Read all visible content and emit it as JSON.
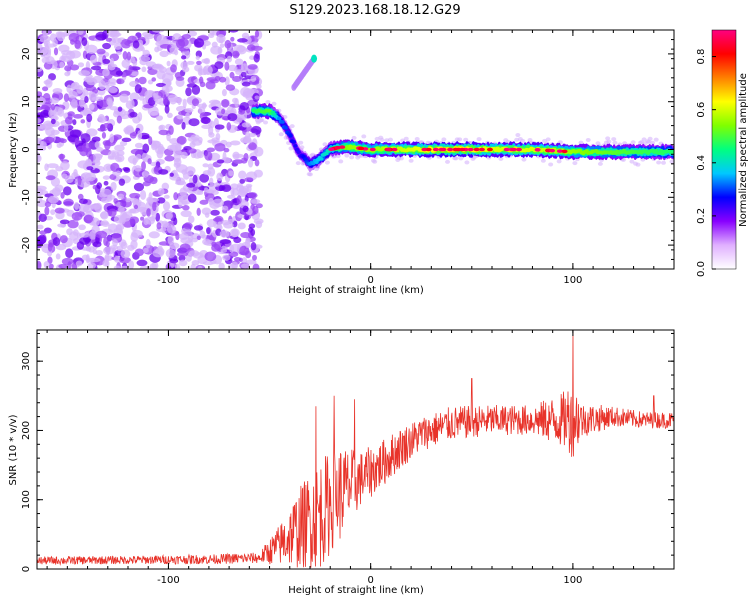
{
  "title": "S129.2023.168.18.12.G29",
  "chart_data": [
    {
      "type": "heatmap",
      "xlabel": "Height of straight line (km)",
      "ylabel": "Frequency (Hz)",
      "xlim": [
        -165,
        150
      ],
      "ylim": [
        -25,
        25
      ],
      "xticks": [
        -100,
        0,
        100
      ],
      "yticks": [
        -20,
        -10,
        0,
        10,
        20
      ],
      "colorbar": {
        "label": "Normalized spectral amplitude",
        "range": [
          0,
          0.9
        ],
        "ticks": [
          0.0,
          0.2,
          0.4,
          0.6,
          0.8
        ],
        "colors": [
          "#ffffff",
          "#e0b0ff",
          "#8800ff",
          "#0000ff",
          "#00c8ff",
          "#00ff80",
          "#80ff00",
          "#ffff00",
          "#ff8000",
          "#ff0000",
          "#ff0080"
        ]
      },
      "noise_region": {
        "x_from": -165,
        "x_to": -55,
        "amplitude": 0.08
      },
      "signal_track": [
        {
          "x": -58,
          "freq": 8.0,
          "amp": 0.5
        },
        {
          "x": -50,
          "freq": 8.0,
          "amp": 0.55
        },
        {
          "x": -45,
          "freq": 6.5,
          "amp": 0.35
        },
        {
          "x": -40,
          "freq": 3.0,
          "amp": 0.3
        },
        {
          "x": -35,
          "freq": -1.0,
          "amp": 0.25
        },
        {
          "x": -30,
          "freq": -3.0,
          "amp": 0.35
        },
        {
          "x": -25,
          "freq": -2.0,
          "amp": 0.4
        },
        {
          "x": -20,
          "freq": 0.0,
          "amp": 0.45
        },
        {
          "x": -15,
          "freq": 0.5,
          "amp": 0.55
        },
        {
          "x": -10,
          "freq": 0.5,
          "amp": 0.6
        },
        {
          "x": 0,
          "freq": 0.0,
          "amp": 0.6
        },
        {
          "x": 20,
          "freq": 0.0,
          "amp": 0.65
        },
        {
          "x": 40,
          "freq": 0.0,
          "amp": 0.7
        },
        {
          "x": 60,
          "freq": 0.0,
          "amp": 0.65
        },
        {
          "x": 80,
          "freq": 0.0,
          "amp": 0.65
        },
        {
          "x": 100,
          "freq": -0.5,
          "amp": 0.6
        },
        {
          "x": 120,
          "freq": -0.5,
          "amp": 0.55
        },
        {
          "x": 150,
          "freq": -0.5,
          "amp": 0.5
        }
      ],
      "secondary_track": [
        {
          "x": -38,
          "freq": 13.0
        },
        {
          "x": -33,
          "freq": 16.0
        },
        {
          "x": -28,
          "freq": 19.0
        }
      ]
    },
    {
      "type": "line",
      "xlabel": "Height of straight line (km)",
      "ylabel": "SNR (10 * v/v)",
      "xlim": [
        -165,
        150
      ],
      "ylim": [
        0,
        345
      ],
      "xticks": [
        -100,
        0,
        100
      ],
      "yticks": [
        0,
        100,
        200,
        300
      ],
      "line_color": "#e8332a",
      "envelope": [
        {
          "x": -165,
          "y": 12,
          "spread": 6
        },
        {
          "x": -120,
          "y": 13,
          "spread": 6
        },
        {
          "x": -80,
          "y": 14,
          "spread": 7
        },
        {
          "x": -55,
          "y": 16,
          "spread": 8
        },
        {
          "x": -45,
          "y": 35,
          "spread": 30
        },
        {
          "x": -35,
          "y": 60,
          "spread": 60
        },
        {
          "x": -25,
          "y": 80,
          "spread": 80
        },
        {
          "x": -15,
          "y": 110,
          "spread": 70
        },
        {
          "x": -5,
          "y": 130,
          "spread": 40
        },
        {
          "x": 5,
          "y": 150,
          "spread": 35
        },
        {
          "x": 15,
          "y": 175,
          "spread": 30
        },
        {
          "x": 25,
          "y": 195,
          "spread": 25
        },
        {
          "x": 40,
          "y": 210,
          "spread": 25
        },
        {
          "x": 60,
          "y": 215,
          "spread": 22
        },
        {
          "x": 80,
          "y": 215,
          "spread": 22
        },
        {
          "x": 95,
          "y": 215,
          "spread": 40
        },
        {
          "x": 100,
          "y": 220,
          "spread": 60
        },
        {
          "x": 105,
          "y": 215,
          "spread": 25
        },
        {
          "x": 120,
          "y": 220,
          "spread": 15
        },
        {
          "x": 135,
          "y": 215,
          "spread": 12
        },
        {
          "x": 150,
          "y": 215,
          "spread": 12
        }
      ],
      "peaks": [
        {
          "x": -27,
          "y": 235
        },
        {
          "x": -18,
          "y": 250
        },
        {
          "x": -8,
          "y": 245
        },
        {
          "x": 50,
          "y": 275
        },
        {
          "x": 100,
          "y": 345
        },
        {
          "x": 140,
          "y": 250
        }
      ]
    }
  ]
}
